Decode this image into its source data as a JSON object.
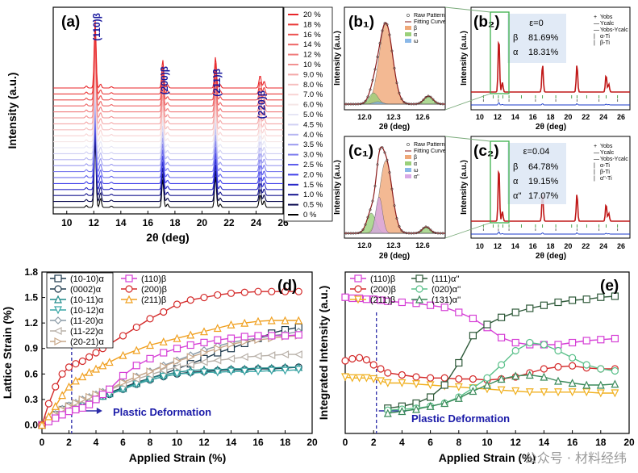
{
  "watermark": "公众号 · 材料经纬",
  "panel_a": {
    "label": "(a)",
    "xlabel": "2θ (deg)",
    "ylabel": "Intensity (a.u.)",
    "xticks": [
      "10",
      "12",
      "14",
      "16",
      "18",
      "20",
      "22",
      "24",
      "26"
    ],
    "xlim": [
      9,
      26
    ],
    "peak_labels": [
      {
        "text": "(110)β",
        "x": 12.1
      },
      {
        "text": "(200)β",
        "x": 17.1
      },
      {
        "text": "(211)β",
        "x": 21.0
      },
      {
        "text": "(220)β",
        "x": 24.3
      }
    ],
    "legend": [
      "20 %",
      "18 %",
      "16 %",
      "14 %",
      "12 %",
      "10 %",
      "9.0 %",
      "8.0 %",
      "7.0 %",
      "6.0 %",
      "5.0 %",
      "4.5 %",
      "4.0 %",
      "3.5 %",
      "3.0 %",
      "2.5 %",
      "2.0 %",
      "1.5 %",
      "1.0 %",
      "0.5 %",
      "0 %"
    ],
    "legend_colors": [
      "#e8262a",
      "#ea3b3a",
      "#ec5150",
      "#ee6666",
      "#f07c7c",
      "#f29292",
      "#f4a8a8",
      "#f6bfbf",
      "#f8d4d4",
      "#f5e6e6",
      "#e6e6f5",
      "#d0d0f4",
      "#b6b6f2",
      "#9a9af0",
      "#7c7cee",
      "#5e5eec",
      "#4040ea",
      "#2828c8",
      "#161690",
      "#0a0a50",
      "#000000"
    ]
  },
  "panel_b1": {
    "label": "(b₁)",
    "xlabel": "2θ (deg)",
    "ylabel": "Intensity (a.u.)",
    "xticks": [
      "12.0",
      "12.3",
      "12.6"
    ],
    "legend": [
      "Raw Pattern",
      "Fitting Curve",
      "β",
      "α",
      "ω"
    ]
  },
  "panel_b2": {
    "label": "(b₂)",
    "xlabel": "2θ (deg)",
    "ylabel": "Intensity (a.u.)",
    "xticks": [
      "10",
      "12",
      "14",
      "16",
      "18",
      "20",
      "22",
      "24",
      "26"
    ],
    "legend": [
      "Yobs",
      "Ycalc",
      "Yobs-Ycalc",
      "α-Ti",
      "β-Ti"
    ],
    "strain": "ε=0",
    "phases": [
      {
        "name": "β",
        "value": "81.69%"
      },
      {
        "name": "α",
        "value": "18.31%"
      }
    ]
  },
  "panel_c1": {
    "label": "(c₁)",
    "xlabel": "2θ (deg)",
    "ylabel": "Intensity (a.u.)",
    "xticks": [
      "12.0",
      "12.3",
      "12.6"
    ],
    "legend": [
      "Raw Pattern",
      "Fitting Curve",
      "β",
      "α",
      "ω",
      "α''"
    ]
  },
  "panel_c2": {
    "label": "(c₂)",
    "xlabel": "2θ (deg)",
    "ylabel": "Intensity (a.u.)",
    "xticks": [
      "10",
      "12",
      "14",
      "16",
      "18",
      "20",
      "22",
      "24",
      "26"
    ],
    "legend": [
      "Yobs",
      "Ycalc",
      "Yobs-Ycalc",
      "α-Ti",
      "β-Ti",
      "α''-Ti"
    ],
    "strain": "ε=0.04",
    "phases": [
      {
        "name": "β",
        "value": "64.78%"
      },
      {
        "name": "α",
        "value": "19.15%"
      },
      {
        "name": "α''",
        "value": "17.07%"
      }
    ]
  },
  "chart_data": [
    {
      "type": "line",
      "id": "d",
      "label": "(d)",
      "xlabel": "Applied Strain (%)",
      "ylabel": "Lattice Strain (%)",
      "xlim": [
        0,
        20
      ],
      "ylim": [
        -0.1,
        1.8
      ],
      "xticks": [
        "0",
        "2",
        "4",
        "6",
        "8",
        "10",
        "12",
        "14",
        "16",
        "18",
        "20"
      ],
      "yticks": [
        "0.0",
        "0.3",
        "0.6",
        "0.9",
        "1.2",
        "1.5",
        "1.8"
      ],
      "annotation": "Plastic Deformation",
      "vline_x": 2.2,
      "x": [
        0,
        0.5,
        1,
        1.5,
        2,
        2.5,
        3,
        3.5,
        4,
        4.5,
        5,
        6,
        7,
        8,
        9,
        10,
        11,
        12,
        13,
        14,
        15,
        16,
        17,
        18,
        19
      ],
      "series": [
        {
          "name": "(10-10)α",
          "color": "#1f3a4d",
          "marker": "square",
          "values": [
            0,
            0.05,
            0.12,
            0.18,
            0.22,
            0.24,
            0.28,
            0.3,
            0.33,
            0.35,
            0.38,
            0.44,
            0.5,
            0.55,
            0.6,
            0.66,
            0.72,
            0.78,
            0.85,
            0.9,
            0.96,
            1.02,
            1.08,
            1.12,
            1.15
          ]
        },
        {
          "name": "(0002)α",
          "color": "#1f3a4d",
          "marker": "circle",
          "values": [
            0,
            0.05,
            0.12,
            0.18,
            0.22,
            0.24,
            0.27,
            0.3,
            0.32,
            0.34,
            0.36,
            0.42,
            0.48,
            0.53,
            0.57,
            0.6,
            0.62,
            0.63,
            0.64,
            0.65,
            0.65,
            0.66,
            0.66,
            0.67,
            0.68
          ]
        },
        {
          "name": "(10-11)α",
          "color": "#1e8a8a",
          "marker": "triangle",
          "values": [
            0,
            0.05,
            0.11,
            0.17,
            0.21,
            0.23,
            0.26,
            0.29,
            0.32,
            0.34,
            0.37,
            0.43,
            0.49,
            0.55,
            0.59,
            0.62,
            0.64,
            0.65,
            0.65,
            0.66,
            0.66,
            0.67,
            0.67,
            0.68,
            0.68
          ]
        },
        {
          "name": "(10-12)α",
          "color": "#3aa6a6",
          "marker": "tri-down",
          "values": [
            0,
            0.05,
            0.11,
            0.17,
            0.21,
            0.23,
            0.26,
            0.29,
            0.31,
            0.34,
            0.36,
            0.42,
            0.48,
            0.53,
            0.57,
            0.6,
            0.61,
            0.62,
            0.62,
            0.63,
            0.63,
            0.63,
            0.64,
            0.64,
            0.65
          ]
        },
        {
          "name": "(11-20)α",
          "color": "#8a9aa6",
          "marker": "diamond",
          "values": [
            0,
            0.06,
            0.13,
            0.19,
            0.23,
            0.26,
            0.3,
            0.33,
            0.36,
            0.39,
            0.42,
            0.5,
            0.57,
            0.63,
            0.7,
            0.76,
            0.82,
            0.88,
            0.93,
            0.97,
            1.0,
            1.02,
            1.05,
            1.07,
            1.1
          ]
        },
        {
          "name": "(11-22)α",
          "color": "#b8b0a8",
          "marker": "tri-left",
          "values": [
            0,
            0.06,
            0.12,
            0.18,
            0.22,
            0.25,
            0.29,
            0.32,
            0.35,
            0.38,
            0.41,
            0.48,
            0.54,
            0.59,
            0.64,
            0.68,
            0.71,
            0.74,
            0.76,
            0.78,
            0.8,
            0.81,
            0.82,
            0.83,
            0.83
          ]
        },
        {
          "name": "(20-21)α",
          "color": "#c9a88a",
          "marker": "tri-right",
          "values": [
            0,
            0.06,
            0.12,
            0.18,
            0.22,
            0.26,
            0.3,
            0.33,
            0.36,
            0.39,
            0.42,
            0.5,
            0.57,
            0.63,
            0.69,
            0.75,
            0.8,
            0.85,
            0.9,
            0.95,
            0.98,
            1.0,
            1.02,
            1.04,
            1.05
          ]
        },
        {
          "name": "(110)β",
          "color": "#d640d6",
          "marker": "square",
          "values": [
            0,
            0.04,
            0.08,
            0.12,
            0.16,
            0.18,
            0.2,
            0.24,
            0.3,
            0.36,
            0.42,
            0.58,
            0.7,
            0.78,
            0.85,
            0.9,
            0.94,
            0.97,
            1.0,
            1.02,
            1.04,
            1.05,
            1.05,
            1.05,
            1.06
          ]
        },
        {
          "name": "(200)β",
          "color": "#d42a2a",
          "marker": "circle",
          "values": [
            0,
            0.25,
            0.45,
            0.6,
            0.68,
            0.72,
            0.75,
            0.8,
            0.85,
            0.9,
            0.95,
            1.05,
            1.15,
            1.25,
            1.33,
            1.42,
            1.47,
            1.5,
            1.53,
            1.55,
            1.56,
            1.57,
            1.57,
            1.57,
            1.57
          ]
        },
        {
          "name": "(211)β",
          "color": "#f0a020",
          "marker": "triangle",
          "values": [
            0,
            0.1,
            0.22,
            0.35,
            0.45,
            0.52,
            0.57,
            0.62,
            0.66,
            0.7,
            0.74,
            0.82,
            0.88,
            0.94,
            0.98,
            1.02,
            1.06,
            1.1,
            1.14,
            1.18,
            1.2,
            1.22,
            1.23,
            1.23,
            1.23
          ]
        }
      ]
    },
    {
      "type": "line",
      "id": "e",
      "label": "(e)",
      "xlabel": "Applied Strain (%)",
      "ylabel": "Integrated Intensity (a.u.)",
      "xlim": [
        0,
        20
      ],
      "xticks": [
        "0",
        "2",
        "4",
        "6",
        "8",
        "10",
        "12",
        "14",
        "16",
        "18",
        "20"
      ],
      "annotation": "Plastic Deformation",
      "vline_x": 2.2,
      "series": [
        {
          "name": "(110)β",
          "color": "#d640d6",
          "marker": "square",
          "x": [
            0,
            0.5,
            1,
            1.5,
            2,
            2.5,
            3,
            4,
            5,
            6,
            7,
            8,
            9,
            10,
            11,
            12,
            13,
            14,
            15,
            16,
            17,
            18,
            19
          ],
          "values": [
            1.35,
            1.34,
            1.34,
            1.33,
            1.33,
            1.32,
            1.31,
            1.3,
            1.29,
            1.27,
            1.25,
            1.2,
            1.14,
            1.05,
            0.95,
            0.9,
            0.88,
            0.88,
            0.88,
            0.9,
            0.92,
            0.93,
            0.94
          ]
        },
        {
          "name": "(200)β",
          "color": "#d42a2a",
          "marker": "circle",
          "x": [
            0,
            0.5,
            1,
            1.5,
            2,
            2.5,
            3,
            4,
            5,
            6,
            7,
            8,
            9,
            10,
            11,
            12,
            13,
            14,
            15,
            16,
            17,
            18,
            19
          ],
          "values": [
            0.72,
            0.74,
            0.75,
            0.73,
            0.68,
            0.64,
            0.6,
            0.58,
            0.56,
            0.55,
            0.55,
            0.54,
            0.54,
            0.53,
            0.54,
            0.56,
            0.6,
            0.64,
            0.66,
            0.67,
            0.65,
            0.64,
            0.64
          ]
        },
        {
          "name": "(211)β",
          "color": "#f0b020",
          "marker": "tri-down",
          "x": [
            0,
            0.5,
            1,
            1.5,
            2,
            2.5,
            3,
            4,
            5,
            6,
            7,
            8,
            9,
            10,
            11,
            12,
            13,
            14,
            15,
            16,
            17,
            18,
            19
          ],
          "values": [
            0.56,
            0.55,
            0.55,
            0.55,
            0.54,
            0.52,
            0.5,
            0.5,
            0.49,
            0.48,
            0.47,
            0.46,
            0.45,
            0.44,
            0.43,
            0.42,
            0.41,
            0.41,
            0.41,
            0.41,
            0.41,
            0.4,
            0.4
          ]
        },
        {
          "name": "(111)α''",
          "color": "#2f5a3a",
          "marker": "square",
          "x": [
            3,
            4,
            5,
            6,
            7,
            8,
            9,
            10,
            11,
            12,
            13,
            14,
            15,
            16,
            17,
            18,
            19
          ],
          "values": [
            0.25,
            0.27,
            0.3,
            0.36,
            0.48,
            0.7,
            0.97,
            1.08,
            1.15,
            1.2,
            1.24,
            1.27,
            1.3,
            1.32,
            1.33,
            1.35,
            1.36
          ]
        },
        {
          "name": "(020)α''",
          "color": "#5ac08a",
          "marker": "circle",
          "x": [
            3,
            4,
            5,
            6,
            7,
            8,
            9,
            10,
            11,
            12,
            13,
            14,
            15,
            16,
            17,
            18,
            19
          ],
          "values": [
            0.23,
            0.24,
            0.25,
            0.27,
            0.3,
            0.36,
            0.45,
            0.55,
            0.68,
            0.82,
            0.9,
            0.88,
            0.82,
            0.75,
            0.68,
            0.64,
            0.62
          ]
        },
        {
          "name": "(131)α''",
          "color": "#3a8a5a",
          "marker": "triangle",
          "x": [
            3,
            4,
            5,
            6,
            7,
            8,
            9,
            10,
            11,
            12,
            13,
            14,
            15,
            16,
            17,
            18,
            19
          ],
          "values": [
            0.2,
            0.22,
            0.24,
            0.27,
            0.3,
            0.35,
            0.42,
            0.48,
            0.54,
            0.57,
            0.58,
            0.56,
            0.52,
            0.5,
            0.48,
            0.48,
            0.49
          ]
        }
      ]
    }
  ]
}
